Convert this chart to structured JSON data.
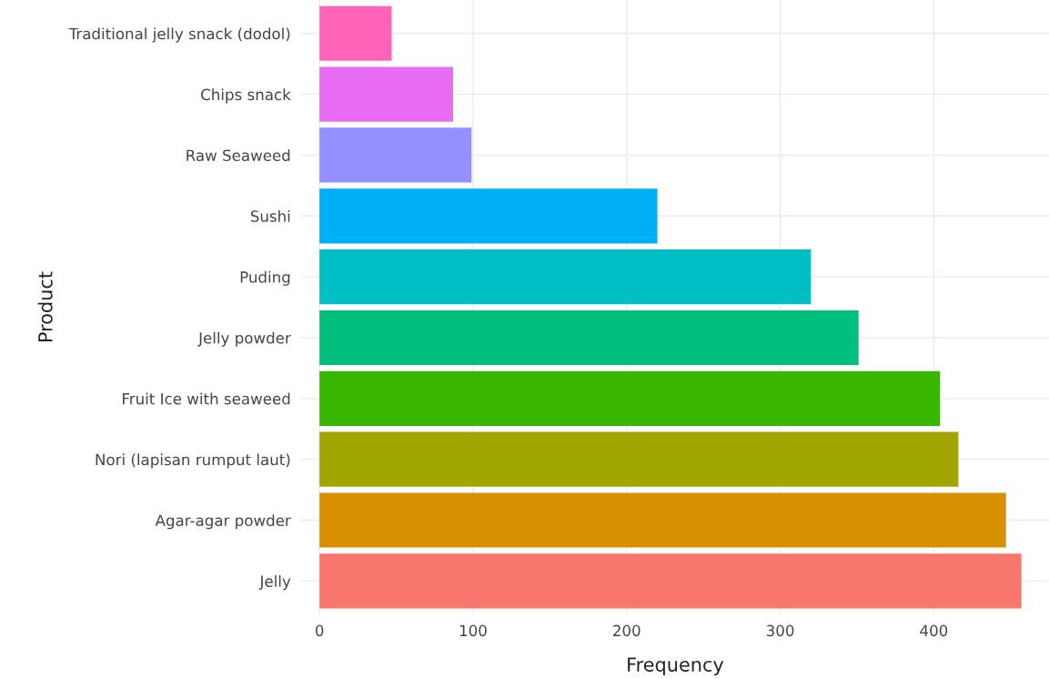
{
  "chart_data": {
    "type": "bar",
    "orientation": "horizontal",
    "xlabel": "Frequency",
    "ylabel": "Product",
    "categories": [
      "Traditional jelly snack (dodol)",
      "Chips snack",
      "Raw Seaweed",
      "Sushi",
      "Puding",
      "Jelly powder",
      "Fruit Ice with seaweed",
      "Nori (lapisan rumput laut)",
      "Agar-agar powder",
      "Jelly"
    ],
    "values": [
      47,
      87,
      99,
      220,
      320,
      351,
      404,
      416,
      447,
      457
    ],
    "colors": [
      "#ff64b9",
      "#e76bf3",
      "#9590ff",
      "#00b0f6",
      "#00bfc4",
      "#00bf7d",
      "#39b600",
      "#a3a500",
      "#d89000",
      "#f8766d"
    ],
    "xlim": [
      -12,
      475
    ],
    "xticks": [
      0,
      100,
      200,
      300,
      400
    ],
    "grid": true,
    "legend": false
  }
}
